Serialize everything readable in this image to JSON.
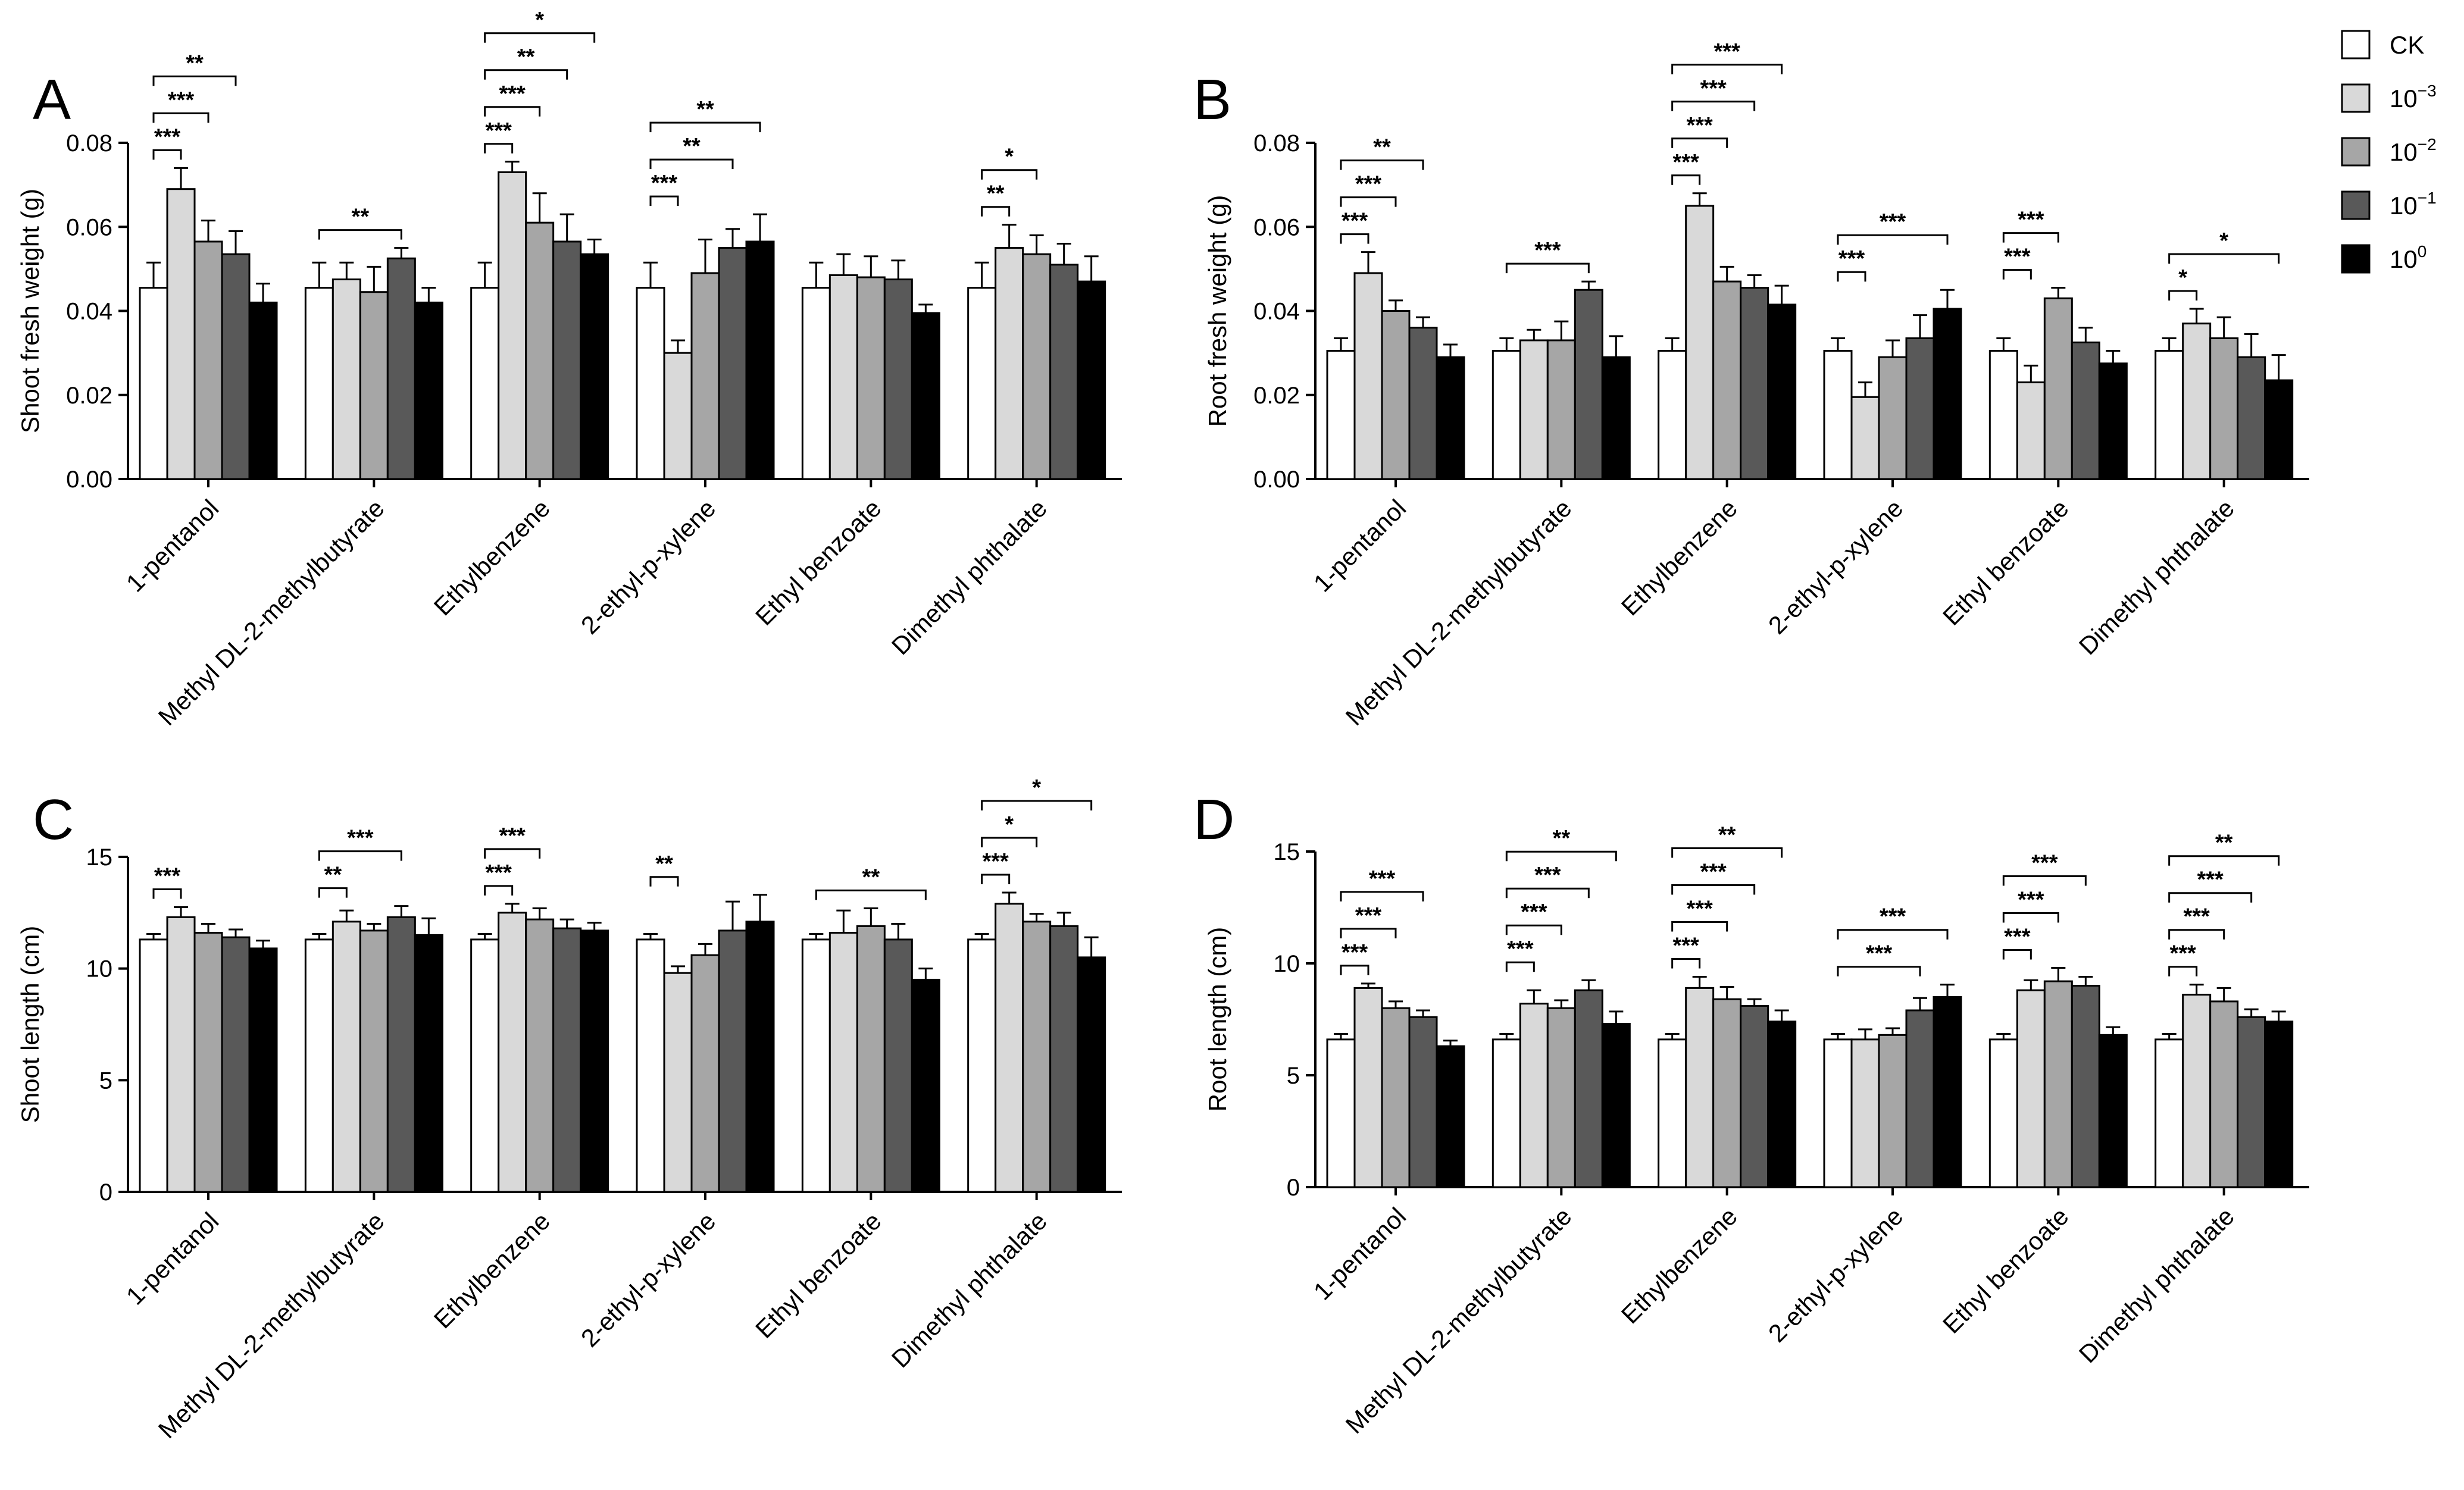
{
  "figure": {
    "colors": {
      "CK": "#ffffff",
      "1e-3": "#d9d9d9",
      "1e-2": "#a6a6a6",
      "1e-1": "#595959",
      "1e0": "#000000"
    },
    "legend": [
      {
        "key": "CK",
        "base": "CK",
        "sup": ""
      },
      {
        "key": "1e-3",
        "base": "10",
        "sup": "−3"
      },
      {
        "key": "1e-2",
        "base": "10",
        "sup": "−2"
      },
      {
        "key": "1e-1",
        "base": "10",
        "sup": "−1"
      },
      {
        "key": "1e0",
        "base": "10",
        "sup": "0"
      }
    ]
  },
  "chart_data": [
    {
      "panel": "A",
      "type": "bar",
      "ylabel": "Shoot fresh weight (g)",
      "ylim": [
        0,
        0.08
      ],
      "yticks": [
        "0.00",
        "0.02",
        "0.04",
        "0.06",
        "0.08"
      ],
      "yticks_values": [
        0,
        0.02,
        0.04,
        0.06,
        0.08
      ],
      "categories": [
        "1-pentanol",
        "Methyl DL-2-methylbutyrate",
        "Ethylbenzene",
        "2-ethyl-p-xylene",
        "Ethyl benzoate",
        "Dimethyl phthalate"
      ],
      "series": [
        {
          "name": "CK",
          "values": [
            0.0455,
            0.0455,
            0.0455,
            0.0455,
            0.0455,
            0.0455
          ],
          "errors": [
            0.006,
            0.006,
            0.006,
            0.006,
            0.006,
            0.006
          ]
        },
        {
          "name": "10^-3",
          "values": [
            0.069,
            0.0475,
            0.073,
            0.03,
            0.0485,
            0.055
          ],
          "errors": [
            0.005,
            0.004,
            0.0025,
            0.003,
            0.005,
            0.0055
          ]
        },
        {
          "name": "10^-2",
          "values": [
            0.0565,
            0.0445,
            0.061,
            0.049,
            0.048,
            0.0535
          ],
          "errors": [
            0.005,
            0.006,
            0.007,
            0.008,
            0.005,
            0.0045
          ]
        },
        {
          "name": "10^-1",
          "values": [
            0.0535,
            0.0525,
            0.0565,
            0.055,
            0.0475,
            0.051
          ],
          "errors": [
            0.0055,
            0.0025,
            0.0065,
            0.0045,
            0.0045,
            0.005
          ]
        },
        {
          "name": "10^0",
          "values": [
            0.042,
            0.042,
            0.0535,
            0.0565,
            0.0395,
            0.047
          ],
          "errors": [
            0.0045,
            0.0035,
            0.0035,
            0.0065,
            0.002,
            0.006
          ]
        }
      ],
      "significance": [
        {
          "cat": 0,
          "from": 0,
          "to": 1,
          "level": 1,
          "label": "***"
        },
        {
          "cat": 0,
          "from": 0,
          "to": 2,
          "level": 2,
          "label": "***"
        },
        {
          "cat": 0,
          "from": 0,
          "to": 3,
          "level": 3,
          "label": "**"
        },
        {
          "cat": 1,
          "from": 0,
          "to": 3,
          "level": 1,
          "label": "**"
        },
        {
          "cat": 2,
          "from": 0,
          "to": 1,
          "level": 1,
          "label": "***"
        },
        {
          "cat": 2,
          "from": 0,
          "to": 2,
          "level": 2,
          "label": "***"
        },
        {
          "cat": 2,
          "from": 0,
          "to": 3,
          "level": 3,
          "label": "**"
        },
        {
          "cat": 2,
          "from": 0,
          "to": 4,
          "level": 4,
          "label": "*"
        },
        {
          "cat": 3,
          "from": 0,
          "to": 1,
          "level": 1,
          "label": "***"
        },
        {
          "cat": 3,
          "from": 0,
          "to": 3,
          "level": 2,
          "label": "**"
        },
        {
          "cat": 3,
          "from": 0,
          "to": 4,
          "level": 3,
          "label": "**"
        },
        {
          "cat": 5,
          "from": 0,
          "to": 1,
          "level": 1,
          "label": "**"
        },
        {
          "cat": 5,
          "from": 0,
          "to": 2,
          "level": 2,
          "label": "*"
        }
      ]
    },
    {
      "panel": "B",
      "type": "bar",
      "ylabel": "Root fresh weight (g)",
      "ylim": [
        0,
        0.08
      ],
      "yticks": [
        "0.00",
        "0.02",
        "0.04",
        "0.06",
        "0.08"
      ],
      "yticks_values": [
        0,
        0.02,
        0.04,
        0.06,
        0.08
      ],
      "categories": [
        "1-pentanol",
        "Methyl DL-2-methylbutyrate",
        "Ethylbenzene",
        "2-ethyl-p-xylene",
        "Ethyl benzoate",
        "Dimethyl phthalate"
      ],
      "series": [
        {
          "name": "CK",
          "values": [
            0.0305,
            0.0305,
            0.0305,
            0.0305,
            0.0305,
            0.0305
          ],
          "errors": [
            0.003,
            0.003,
            0.003,
            0.003,
            0.003,
            0.003
          ]
        },
        {
          "name": "10^-3",
          "values": [
            0.049,
            0.033,
            0.065,
            0.0195,
            0.023,
            0.037
          ],
          "errors": [
            0.005,
            0.0025,
            0.003,
            0.0035,
            0.004,
            0.0035
          ]
        },
        {
          "name": "10^-2",
          "values": [
            0.04,
            0.033,
            0.047,
            0.029,
            0.043,
            0.0335
          ],
          "errors": [
            0.0025,
            0.0045,
            0.0035,
            0.004,
            0.0025,
            0.005
          ]
        },
        {
          "name": "10^-1",
          "values": [
            0.036,
            0.045,
            0.0455,
            0.0335,
            0.0325,
            0.029
          ],
          "errors": [
            0.0025,
            0.002,
            0.003,
            0.0055,
            0.0035,
            0.0055
          ]
        },
        {
          "name": "10^0",
          "values": [
            0.029,
            0.029,
            0.0415,
            0.0405,
            0.0275,
            0.0235
          ],
          "errors": [
            0.003,
            0.005,
            0.0045,
            0.0045,
            0.003,
            0.006
          ]
        }
      ],
      "significance": [
        {
          "cat": 0,
          "from": 0,
          "to": 1,
          "level": 1,
          "label": "***"
        },
        {
          "cat": 0,
          "from": 0,
          "to": 2,
          "level": 2,
          "label": "***"
        },
        {
          "cat": 0,
          "from": 0,
          "to": 3,
          "level": 3,
          "label": "**"
        },
        {
          "cat": 1,
          "from": 0,
          "to": 3,
          "level": 1,
          "label": "***"
        },
        {
          "cat": 2,
          "from": 0,
          "to": 1,
          "level": 1,
          "label": "***"
        },
        {
          "cat": 2,
          "from": 0,
          "to": 2,
          "level": 2,
          "label": "***"
        },
        {
          "cat": 2,
          "from": 0,
          "to": 3,
          "level": 3,
          "label": "***"
        },
        {
          "cat": 2,
          "from": 0,
          "to": 4,
          "level": 4,
          "label": "***"
        },
        {
          "cat": 3,
          "from": 0,
          "to": 1,
          "level": 1,
          "label": "***"
        },
        {
          "cat": 3,
          "from": 0,
          "to": 4,
          "level": 2,
          "label": "***"
        },
        {
          "cat": 4,
          "from": 0,
          "to": 1,
          "level": 1,
          "label": "***"
        },
        {
          "cat": 4,
          "from": 0,
          "to": 2,
          "level": 2,
          "label": "***"
        },
        {
          "cat": 5,
          "from": 0,
          "to": 1,
          "level": 1,
          "label": "*"
        },
        {
          "cat": 5,
          "from": 0,
          "to": 4,
          "level": 2,
          "label": "*"
        }
      ]
    },
    {
      "panel": "C",
      "type": "bar",
      "ylabel": "Shoot length (cm)",
      "ylim": [
        0,
        15
      ],
      "yticks": [
        "0",
        "5",
        "10",
        "15"
      ],
      "yticks_values": [
        0,
        5,
        10,
        15
      ],
      "categories": [
        "1-pentanol",
        "Methyl DL-2-methylbutyrate",
        "Ethylbenzene",
        "2-ethyl-p-xylene",
        "Ethyl benzoate",
        "Dimethyl phthalate"
      ],
      "series": [
        {
          "name": "CK",
          "values": [
            11.3,
            11.3,
            11.3,
            11.3,
            11.3,
            11.3
          ],
          "errors": [
            0.25,
            0.25,
            0.25,
            0.25,
            0.25,
            0.25
          ]
        },
        {
          "name": "10^-3",
          "values": [
            12.3,
            12.1,
            12.5,
            9.8,
            11.6,
            12.9
          ],
          "errors": [
            0.45,
            0.5,
            0.4,
            0.3,
            1.0,
            0.5
          ]
        },
        {
          "name": "10^-2",
          "values": [
            11.6,
            11.7,
            12.2,
            10.6,
            11.9,
            12.1
          ],
          "errors": [
            0.4,
            0.3,
            0.5,
            0.5,
            0.8,
            0.35
          ]
        },
        {
          "name": "10^-1",
          "values": [
            11.4,
            12.3,
            11.8,
            11.7,
            11.3,
            11.9
          ],
          "errors": [
            0.35,
            0.5,
            0.4,
            1.3,
            0.7,
            0.6
          ]
        },
        {
          "name": "10^0",
          "values": [
            10.9,
            11.5,
            11.7,
            12.1,
            9.5,
            10.5
          ],
          "errors": [
            0.35,
            0.75,
            0.35,
            1.2,
            0.5,
            0.9
          ]
        }
      ],
      "significance": [
        {
          "cat": 0,
          "from": 0,
          "to": 1,
          "level": 1,
          "label": "***"
        },
        {
          "cat": 1,
          "from": 0,
          "to": 1,
          "level": 1,
          "label": "**"
        },
        {
          "cat": 1,
          "from": 0,
          "to": 3,
          "level": 2,
          "label": "***"
        },
        {
          "cat": 2,
          "from": 0,
          "to": 1,
          "level": 1,
          "label": "***"
        },
        {
          "cat": 2,
          "from": 0,
          "to": 2,
          "level": 2,
          "label": "***"
        },
        {
          "cat": 3,
          "from": 0,
          "to": 1,
          "level": 1,
          "label": "**"
        },
        {
          "cat": 4,
          "from": 0,
          "to": 4,
          "level": 1,
          "label": "**"
        },
        {
          "cat": 5,
          "from": 0,
          "to": 1,
          "level": 1,
          "label": "***"
        },
        {
          "cat": 5,
          "from": 0,
          "to": 2,
          "level": 2,
          "label": "*"
        },
        {
          "cat": 5,
          "from": 0,
          "to": 4,
          "level": 3,
          "label": "*"
        }
      ]
    },
    {
      "panel": "D",
      "type": "bar",
      "ylabel": "Root length (cm)",
      "ylim": [
        0,
        15
      ],
      "yticks": [
        "0",
        "5",
        "10",
        "15"
      ],
      "yticks_values": [
        0,
        5,
        10,
        15
      ],
      "categories": [
        "1-pentanol",
        "Methyl DL-2-methylbutyrate",
        "Ethylbenzene",
        "2-ethyl-p-xylene",
        "Ethyl benzoate",
        "Dimethyl phthalate"
      ],
      "series": [
        {
          "name": "CK",
          "values": [
            6.6,
            6.6,
            6.6,
            6.6,
            6.6,
            6.6
          ],
          "errors": [
            0.25,
            0.25,
            0.25,
            0.25,
            0.25,
            0.25
          ]
        },
        {
          "name": "10^-3",
          "values": [
            8.9,
            8.2,
            8.9,
            6.6,
            8.8,
            8.6
          ],
          "errors": [
            0.2,
            0.6,
            0.5,
            0.45,
            0.45,
            0.45
          ]
        },
        {
          "name": "10^-2",
          "values": [
            8.0,
            8.0,
            8.4,
            6.8,
            9.2,
            8.3
          ],
          "errors": [
            0.3,
            0.35,
            0.55,
            0.3,
            0.6,
            0.6
          ]
        },
        {
          "name": "10^-1",
          "values": [
            7.6,
            8.8,
            8.1,
            7.9,
            9.0,
            7.6
          ],
          "errors": [
            0.3,
            0.45,
            0.3,
            0.55,
            0.4,
            0.35
          ]
        },
        {
          "name": "10^0",
          "values": [
            6.3,
            7.3,
            7.4,
            8.5,
            6.8,
            7.4
          ],
          "errors": [
            0.25,
            0.55,
            0.5,
            0.55,
            0.35,
            0.45
          ]
        }
      ],
      "significance": [
        {
          "cat": 0,
          "from": 0,
          "to": 1,
          "level": 1,
          "label": "***"
        },
        {
          "cat": 0,
          "from": 0,
          "to": 2,
          "level": 2,
          "label": "***"
        },
        {
          "cat": 0,
          "from": 0,
          "to": 3,
          "level": 3,
          "label": "***"
        },
        {
          "cat": 1,
          "from": 0,
          "to": 1,
          "level": 1,
          "label": "***"
        },
        {
          "cat": 1,
          "from": 0,
          "to": 2,
          "level": 2,
          "label": "***"
        },
        {
          "cat": 1,
          "from": 0,
          "to": 3,
          "level": 3,
          "label": "***"
        },
        {
          "cat": 1,
          "from": 0,
          "to": 4,
          "level": 4,
          "label": "**"
        },
        {
          "cat": 2,
          "from": 0,
          "to": 1,
          "level": 1,
          "label": "***"
        },
        {
          "cat": 2,
          "from": 0,
          "to": 2,
          "level": 2,
          "label": "***"
        },
        {
          "cat": 2,
          "from": 0,
          "to": 3,
          "level": 3,
          "label": "***"
        },
        {
          "cat": 2,
          "from": 0,
          "to": 4,
          "level": 4,
          "label": "**"
        },
        {
          "cat": 3,
          "from": 0,
          "to": 3,
          "level": 1,
          "label": "***"
        },
        {
          "cat": 3,
          "from": 0,
          "to": 4,
          "level": 2,
          "label": "***"
        },
        {
          "cat": 4,
          "from": 0,
          "to": 1,
          "level": 1,
          "label": "***"
        },
        {
          "cat": 4,
          "from": 0,
          "to": 2,
          "level": 2,
          "label": "***"
        },
        {
          "cat": 4,
          "from": 0,
          "to": 3,
          "level": 3,
          "label": "***"
        },
        {
          "cat": 5,
          "from": 0,
          "to": 1,
          "level": 1,
          "label": "***"
        },
        {
          "cat": 5,
          "from": 0,
          "to": 2,
          "level": 2,
          "label": "***"
        },
        {
          "cat": 5,
          "from": 0,
          "to": 3,
          "level": 3,
          "label": "***"
        },
        {
          "cat": 5,
          "from": 0,
          "to": 4,
          "level": 4,
          "label": "**"
        }
      ]
    }
  ]
}
